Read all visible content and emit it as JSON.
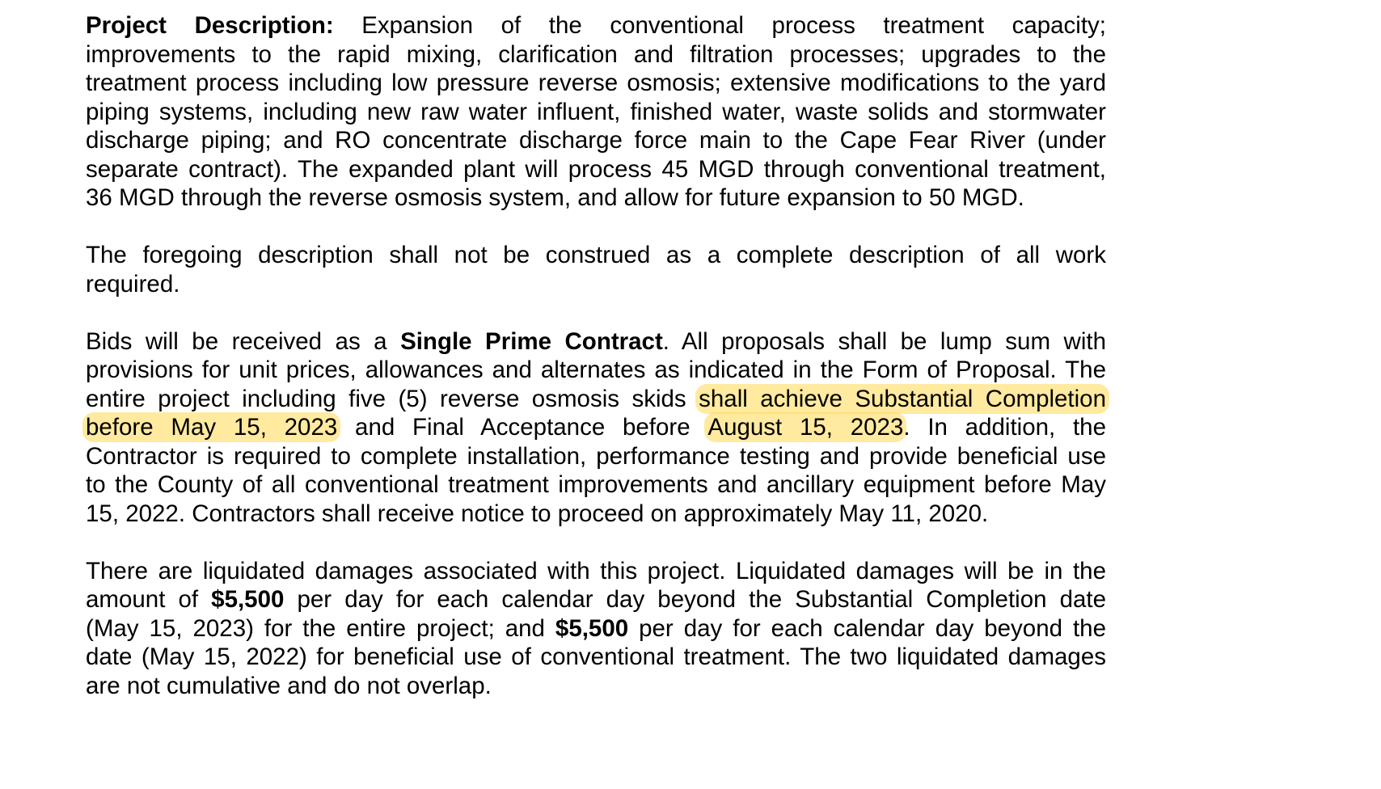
{
  "document": {
    "paragraphs": [
      {
        "lines": [
          [
            {
              "text": "Project Description:",
              "bold": true
            },
            {
              "text": " Expansion of the conventional process treatment capacity;"
            }
          ],
          [
            {
              "text": "improvements to the rapid mixing, clarification and filtration processes; upgrades to the"
            }
          ],
          [
            {
              "text": "treatment process including low pressure reverse osmosis; extensive modifications to the yard"
            }
          ],
          [
            {
              "text": "piping systems, including new raw water influent, finished water, waste solids and stormwater"
            }
          ],
          [
            {
              "text": "discharge piping; and RO concentrate discharge force main to the Cape Fear River (under"
            }
          ],
          [
            {
              "text": "separate contract). The expanded plant will process 45 MGD through conventional treatment,"
            }
          ],
          [
            {
              "text": "36 MGD through the reverse osmosis system, and allow for future expansion to 50 MGD."
            }
          ]
        ]
      },
      {
        "lines": [
          [
            {
              "text": "The foregoing description shall not be construed as a complete description of all work"
            }
          ],
          [
            {
              "text": "required."
            }
          ]
        ]
      },
      {
        "lines": [
          [
            {
              "text": "Bids will be received as a "
            },
            {
              "text": "Single Prime Contract",
              "bold": true
            },
            {
              "text": ".  All proposals shall be lump sum with"
            }
          ],
          [
            {
              "text": "provisions for unit prices, allowances and alternates as indicated in the Form of Proposal.  The"
            }
          ],
          [
            {
              "text": "entire project including five (5) reverse osmosis skids "
            },
            {
              "text": "shall achieve Substantial Completion",
              "highlight": true
            }
          ],
          [
            {
              "text": "before May 15, 2023",
              "highlight": true
            },
            {
              "text": " and Final Acceptance before "
            },
            {
              "text": "August 15, 2023",
              "highlight": true
            },
            {
              "text": ". In addition, the"
            }
          ],
          [
            {
              "text": "Contractor is required to complete installation, performance testing and provide beneficial use"
            }
          ],
          [
            {
              "text": "to the County of all conventional treatment improvements and ancillary equipment before May"
            }
          ],
          [
            {
              "text": "15, 2022. Contractors shall receive notice to proceed on approximately May 11, 2020."
            }
          ]
        ]
      },
      {
        "lines": [
          [
            {
              "text": "There are liquidated damages associated with this project.  Liquidated damages will be in the"
            }
          ],
          [
            {
              "text": "amount of "
            },
            {
              "text": "$5,500",
              "bold": true
            },
            {
              "text": " per day for each calendar day beyond the Substantial Completion date"
            }
          ],
          [
            {
              "text": "(May 15, 2023) for the entire project; and "
            },
            {
              "text": "$5,500",
              "bold": true
            },
            {
              "text": " per day for each calendar day beyond the"
            }
          ],
          [
            {
              "text": "date (May 15, 2022) for beneficial use of conventional treatment. The two liquidated damages"
            }
          ],
          [
            {
              "text": "are not cumulative and do not overlap."
            }
          ]
        ]
      }
    ],
    "highlight_color": "#FFE27A"
  }
}
